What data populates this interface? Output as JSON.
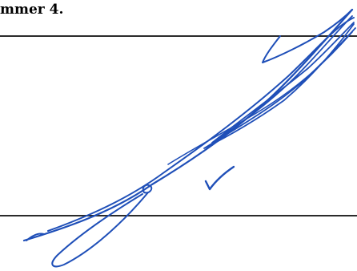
{
  "document": {
    "label_text": "mmer 4."
  },
  "signature": {
    "description_icon": "handwritten-signature-icon",
    "ink_color": "#1f4fb8"
  },
  "colors": {
    "rule_color": "#2b2b2b",
    "paper": "#ffffff"
  }
}
